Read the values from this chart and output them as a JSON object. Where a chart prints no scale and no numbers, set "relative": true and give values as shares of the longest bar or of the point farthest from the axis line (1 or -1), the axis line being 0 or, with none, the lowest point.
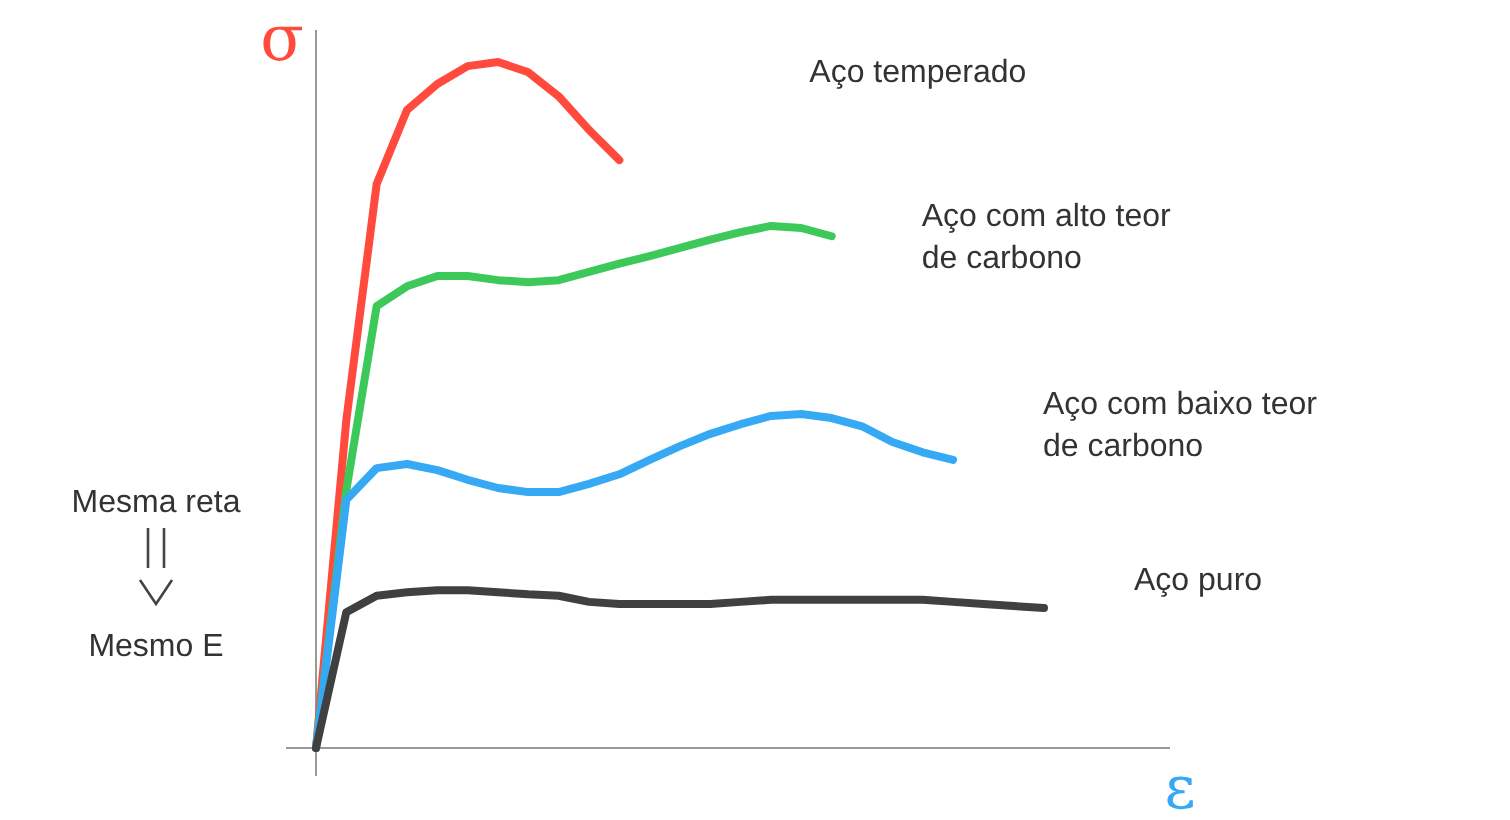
{
  "chart_data": {
    "type": "line",
    "relative": true,
    "xlabel": "ε",
    "ylabel": "σ",
    "line_style": "solid",
    "marker": "none",
    "grid": false,
    "annotations": [
      "Mesma reta",
      "Mesmo E"
    ],
    "categories": [
      null,
      null,
      null,
      null,
      null,
      null,
      null,
      null,
      null,
      null,
      null,
      null,
      null,
      null,
      null,
      null,
      null,
      null,
      null,
      null,
      null,
      null,
      null,
      null,
      null
    ],
    "series": [
      {
        "name": "Aço temperado",
        "color": "#ff4a3d",
        "values": [
          0,
          0.478,
          0.822,
          0.93,
          0.968,
          0.994,
          1.0,
          0.985,
          0.95,
          0.901,
          0.857,
          null,
          null,
          null,
          null,
          null,
          null,
          null,
          null,
          null,
          null,
          null,
          null,
          null,
          null
        ]
      },
      {
        "name": "Aço com alto teor de carbono",
        "color": "#3cc95a",
        "values": [
          0,
          0.376,
          0.644,
          0.673,
          0.688,
          0.688,
          0.682,
          0.679,
          0.682,
          0.694,
          0.706,
          0.717,
          0.729,
          0.741,
          0.752,
          0.761,
          0.758,
          0.746,
          null,
          null,
          null,
          null,
          null,
          null,
          null
        ]
      },
      {
        "name": "Aço com baixo teor de carbono",
        "color": "#36a9f5",
        "values": [
          0,
          0.362,
          0.408,
          0.414,
          0.405,
          0.391,
          0.379,
          0.373,
          0.373,
          0.385,
          0.399,
          0.42,
          0.44,
          0.458,
          0.472,
          0.484,
          0.487,
          0.481,
          0.469,
          0.446,
          0.431,
          0.42,
          null,
          null,
          null
        ]
      },
      {
        "name": "Aço puro",
        "color": "#404040",
        "values": [
          0,
          0.198,
          0.222,
          0.227,
          0.23,
          0.23,
          0.227,
          0.224,
          0.222,
          0.213,
          0.21,
          0.21,
          0.21,
          0.21,
          0.213,
          0.216,
          0.216,
          0.216,
          0.216,
          0.216,
          0.216,
          0.213,
          0.21,
          0.207,
          0.204
        ]
      }
    ]
  }
}
